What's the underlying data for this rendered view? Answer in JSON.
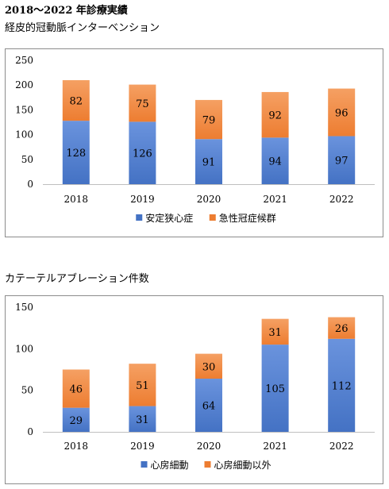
{
  "page": {
    "heading": "2018～2022 年診療実績"
  },
  "colors": {
    "blue": "#4472c4",
    "orange": "#ed7d31"
  },
  "chart_data": [
    {
      "type": "bar",
      "stacked": true,
      "title": "経皮的冠動脈インターベンション",
      "categories": [
        "2018",
        "2019",
        "2020",
        "2021",
        "2022"
      ],
      "series": [
        {
          "name": "安定狭心症",
          "values": [
            128,
            126,
            91,
            94,
            97
          ],
          "color": "#4472c4"
        },
        {
          "name": "急性冠症候群",
          "values": [
            82,
            75,
            79,
            92,
            96
          ],
          "color": "#ed7d31"
        }
      ],
      "ylim": [
        0,
        250
      ],
      "yticks": [
        0,
        50,
        100,
        150,
        200,
        250
      ],
      "legend": "bottom",
      "grid": false
    },
    {
      "type": "bar",
      "stacked": true,
      "title": "カテーテルアブレーション件数",
      "categories": [
        "2018",
        "2019",
        "2020",
        "2021",
        "2022"
      ],
      "series": [
        {
          "name": "心房細動",
          "values": [
            29,
            31,
            64,
            105,
            112
          ],
          "color": "#4472c4"
        },
        {
          "name": "心房細動以外",
          "values": [
            46,
            51,
            30,
            31,
            26
          ],
          "color": "#ed7d31"
        }
      ],
      "ylim": [
        0,
        150
      ],
      "yticks": [
        0,
        50,
        100,
        150
      ],
      "legend": "bottom",
      "grid": false
    }
  ]
}
